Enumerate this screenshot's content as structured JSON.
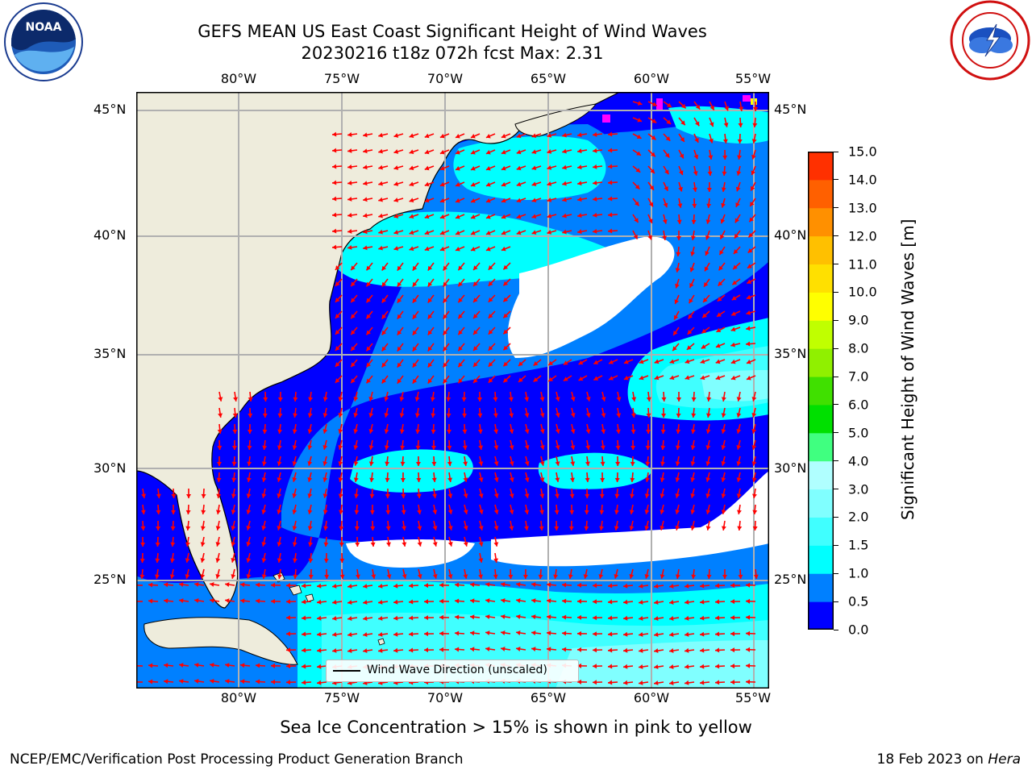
{
  "header": {
    "title_line1": "GEFS MEAN US East Coast Significant Height of Wind Waves",
    "title_line2": "20230216 t18z 072h fcst   Max: 2.31"
  },
  "logos": {
    "left": {
      "icon": "noaa-logo",
      "text": "NOAA"
    },
    "right": {
      "icon": "national-weather-service-logo"
    }
  },
  "map": {
    "lon_labels": [
      "80°W",
      "75°W",
      "70°W",
      "65°W",
      "60°W",
      "55°W"
    ],
    "lat_labels": [
      "45°N",
      "40°N",
      "35°N",
      "30°N",
      "25°N"
    ],
    "legend": "Wind Wave Direction (unscaled)",
    "colors": {
      "land": "#eeecdc",
      "no_data": "#ffffff",
      "arrow": "#ff0000",
      "gridline": "#b0b0b0",
      "sea_ice": "#ff00ff"
    }
  },
  "colorbar": {
    "label": "Significant Height of Wind Waves [m]",
    "ticks": [
      "15.0",
      "14.0",
      "13.0",
      "12.0",
      "11.0",
      "10.0",
      "9.0",
      "8.0",
      "7.0",
      "6.0",
      "5.0",
      "4.0",
      "3.0",
      "2.0",
      "1.5",
      "1.0",
      "0.5",
      "0.0"
    ],
    "colors": [
      "#0000ff",
      "#0080ff",
      "#00ffff",
      "#40ffff",
      "#80ffff",
      "#b0ffff",
      "#40ff80",
      "#00e000",
      "#40e000",
      "#90f000",
      "#c0ff00",
      "#ffff00",
      "#ffe000",
      "#ffc000",
      "#ff9000",
      "#ff6000",
      "#ff3000",
      "#ff0000"
    ]
  },
  "footer": {
    "note": "Sea Ice Concentration > 15% is shown in pink to yellow",
    "credit_left": "NCEP/EMC/Verification Post Processing Product Generation Branch",
    "credit_right_date": "18 Feb 2023 on",
    "credit_right_host": "Hera"
  }
}
